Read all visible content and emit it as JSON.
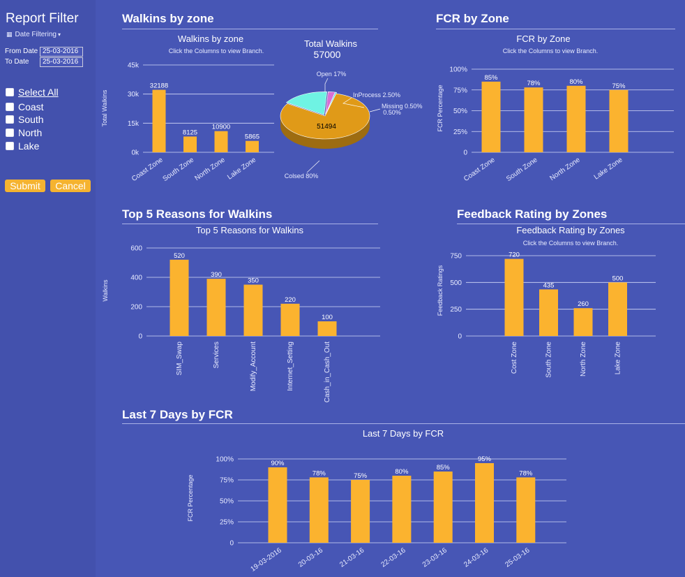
{
  "sidebar": {
    "title": "Report Filter",
    "date_filtering_label": "Date Filtering",
    "from_label": "From Date",
    "from_value": "25-03-2016",
    "to_label": "To Date",
    "to_value": "25-03-2016",
    "checkboxes": [
      "Select All",
      "Coast",
      "South",
      "North",
      "Lake"
    ],
    "submit_label": "Submit",
    "cancel_label": "Cancel"
  },
  "sections": {
    "walkins": "Walkins by zone",
    "fcr": "FCR by Zone",
    "top5": "Top 5 Reasons for Walkins",
    "feedback": "Feedback Rating by Zones",
    "last7": "Last 7 Days by FCR"
  },
  "colors": {
    "background": "#4756b5",
    "sidebar": "#4351ad",
    "bar": "#fbb32f",
    "button": "#f5b330"
  },
  "chart_data": [
    {
      "id": "walkins_bar",
      "type": "bar",
      "title": "Walkins by zone",
      "subtitle": "Click the Columns to view Branch.",
      "ylabel": "Total Walkins",
      "categories": [
        "Coast Zone",
        "South Zone",
        "North Zone",
        "Lake Zone"
      ],
      "values": [
        32188,
        8125,
        10900,
        5865
      ],
      "data_labels": [
        "32188",
        "8125",
        "10900",
        "5865"
      ],
      "ylim": [
        0,
        45000
      ],
      "yticks": [
        "0k",
        "15k",
        "30k",
        "45k"
      ],
      "ytick_values": [
        0,
        15000,
        30000,
        45000
      ]
    },
    {
      "id": "walkins_pie",
      "type": "pie",
      "title": "Total Walkins",
      "total": "57000",
      "slices": [
        {
          "label": "Colsed 80%",
          "value": 80,
          "color": "#e09a18"
        },
        {
          "label": "Open 17%",
          "value": 17,
          "color": "#6ff3e3"
        },
        {
          "label": "InProcess 2.50%",
          "value": 2.5,
          "color": "#d86fd4"
        },
        {
          "label": "Missing 0.50%",
          "value": 0.5,
          "color": "#4fd1d9"
        }
      ],
      "center_label": "51494"
    },
    {
      "id": "fcr_zone",
      "type": "bar",
      "title": "FCR by Zone",
      "subtitle": "Click the Columns to view Branch.",
      "ylabel": "FCR Percentage",
      "categories": [
        "Coast Zone",
        "South Zone",
        "North Zone",
        "Lake Zone"
      ],
      "values": [
        85,
        78,
        80,
        75
      ],
      "data_labels": [
        "85%",
        "78%",
        "80%",
        "75%"
      ],
      "ylim": [
        0,
        100
      ],
      "yticks": [
        "0",
        "25%",
        "50%",
        "75%",
        "100%"
      ],
      "ytick_values": [
        0,
        25,
        50,
        75,
        100
      ]
    },
    {
      "id": "top5",
      "type": "bar",
      "title": "Top 5 Reasons for Walkins",
      "ylabel": "Walkins",
      "categories": [
        "SIM_Swap",
        "Services",
        "Modify_Account",
        "Internet_Setting",
        "Cash_in_Cash_Out"
      ],
      "values": [
        520,
        390,
        350,
        220,
        100
      ],
      "data_labels": [
        "520",
        "390",
        "350",
        "220",
        "100"
      ],
      "ylim": [
        0,
        600
      ],
      "yticks": [
        "0",
        "200",
        "400",
        "600"
      ],
      "ytick_values": [
        0,
        200,
        400,
        600
      ]
    },
    {
      "id": "feedback",
      "type": "bar",
      "title": "Feedback Rating by Zones",
      "subtitle": "Click the Columns to view Branch.",
      "ylabel": "Feedback Ratings",
      "categories": [
        "Cost Zone",
        "South Zone",
        "North Zone",
        "Lake Zone"
      ],
      "values": [
        720,
        435,
        260,
        500
      ],
      "data_labels": [
        "720",
        "435",
        "260",
        "500"
      ],
      "ylim": [
        0,
        750
      ],
      "yticks": [
        "0",
        "250",
        "500",
        "750"
      ],
      "ytick_values": [
        0,
        250,
        500,
        750
      ]
    },
    {
      "id": "last7",
      "type": "bar",
      "title": "Last 7 Days by FCR",
      "ylabel": "FCR Percentage",
      "categories": [
        "19-03-2016",
        "20-03-16",
        "21-03-16",
        "22-03-16",
        "23-03-16",
        "24-03-16",
        "25-03-16"
      ],
      "values": [
        90,
        78,
        75,
        80,
        85,
        95,
        78
      ],
      "data_labels": [
        "90%",
        "78%",
        "75%",
        "80%",
        "85%",
        "95%",
        "78%"
      ],
      "ylim": [
        0,
        100
      ],
      "yticks": [
        "0",
        "25%",
        "50%",
        "75%",
        "100%"
      ],
      "ytick_values": [
        0,
        25,
        50,
        75,
        100
      ]
    }
  ]
}
